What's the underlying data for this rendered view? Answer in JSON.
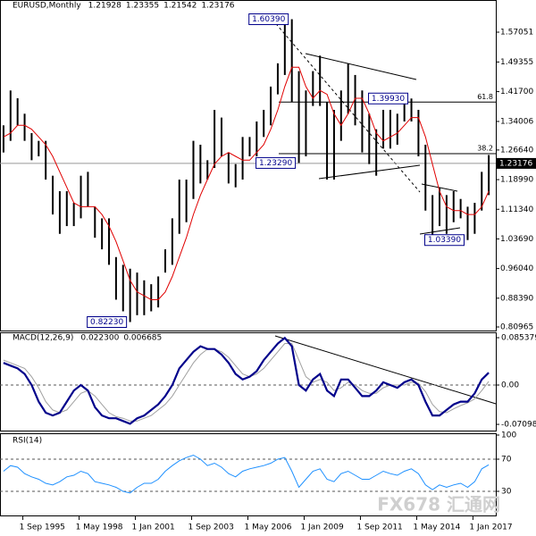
{
  "watermark": "FX678 汇通网",
  "chart_data": [
    {
      "type": "ohlc",
      "title": "EURUSD,Monthly",
      "header_values": [
        1.21928,
        1.23355,
        1.21542,
        1.23176
      ],
      "xlim": [
        -0.5,
        70
      ],
      "xticks": [
        {
          "value": 2.75,
          "label": "1 Sep 1995"
        },
        {
          "value": 10.75,
          "label": "1 May 1998"
        },
        {
          "value": 18.75,
          "label": "1 Jan 2001"
        },
        {
          "value": 26.75,
          "label": "1 Sep 2003"
        },
        {
          "value": 34.75,
          "label": "1 May 2006"
        },
        {
          "value": 42.75,
          "label": "1 Jan 2009"
        },
        {
          "value": 50.75,
          "label": "1 Sep 2011"
        },
        {
          "value": 58.75,
          "label": "1 May 2014"
        },
        {
          "value": 66.75,
          "label": "1 Jan 2017"
        }
      ],
      "ylim": [
        0.8004,
        1.642
      ],
      "yticks": [
        1.57051,
        1.49355,
        {
          "value": 1.417,
          "label": "1.41700"
        },
        1.34006,
        {
          "value": 1.2664,
          "label": "1.26640"
        },
        {
          "value": 1.1899,
          "label": "1.18990"
        },
        {
          "value": 1.1134,
          "label": "1.11340"
        },
        {
          "value": 1.0369,
          "label": "1.03690"
        },
        {
          "value": 0.9604,
          "label": "0.96040"
        },
        {
          "value": 0.8839,
          "label": "0.88390"
        },
        0.80965
      ],
      "price": {
        "color": "#000000",
        "high": [
          1.33,
          1.42,
          1.4,
          1.36,
          1.31,
          1.29,
          1.29,
          1.2,
          1.16,
          1.16,
          1.13,
          1.2,
          1.21,
          1.12,
          1.09,
          1.09,
          0.99,
          0.97,
          0.96,
          0.95,
          0.93,
          0.92,
          0.94,
          1.01,
          1.09,
          1.19,
          1.19,
          1.29,
          1.28,
          1.24,
          1.37,
          1.35,
          1.26,
          1.23,
          1.3,
          1.3,
          1.34,
          1.37,
          1.43,
          1.49,
          1.6,
          1.6039,
          1.47,
          1.42,
          1.47,
          1.51,
          1.39,
          1.37,
          1.42,
          1.49,
          1.46,
          1.42,
          1.36,
          1.32,
          1.37,
          1.37,
          1.36,
          1.39,
          1.3993,
          1.37,
          1.28,
          1.15,
          1.17,
          1.15,
          1.16,
          1.14,
          1.12,
          1.13,
          1.21,
          1.2535
        ],
        "low": [
          1.26,
          1.29,
          1.33,
          1.29,
          1.24,
          1.25,
          1.19,
          1.1,
          1.05,
          1.07,
          1.07,
          1.09,
          1.12,
          1.04,
          1.01,
          0.97,
          0.88,
          0.85,
          0.8223,
          0.84,
          0.84,
          0.85,
          0.86,
          0.95,
          0.97,
          1.05,
          1.08,
          1.14,
          1.18,
          1.19,
          1.22,
          1.25,
          1.18,
          1.17,
          1.19,
          1.25,
          1.25,
          1.3,
          1.33,
          1.41,
          1.46,
          1.39,
          1.2329,
          1.25,
          1.38,
          1.38,
          1.19,
          1.19,
          1.29,
          1.36,
          1.33,
          1.26,
          1.23,
          1.2,
          1.27,
          1.27,
          1.28,
          1.34,
          1.34,
          1.25,
          1.11,
          1.0458,
          1.07,
          1.05,
          1.08,
          1.09,
          1.0339,
          1.05,
          1.11,
          1.15
        ]
      },
      "ma": {
        "color": "#e00000",
        "values": [
          1.3,
          1.31,
          1.33,
          1.33,
          1.32,
          1.3,
          1.28,
          1.25,
          1.21,
          1.17,
          1.13,
          1.12,
          1.12,
          1.12,
          1.1,
          1.07,
          1.03,
          0.98,
          0.93,
          0.9,
          0.89,
          0.88,
          0.88,
          0.9,
          0.94,
          0.99,
          1.04,
          1.1,
          1.15,
          1.19,
          1.23,
          1.25,
          1.26,
          1.25,
          1.24,
          1.24,
          1.26,
          1.28,
          1.32,
          1.37,
          1.43,
          1.48,
          1.48,
          1.43,
          1.4,
          1.42,
          1.41,
          1.36,
          1.33,
          1.36,
          1.4,
          1.4,
          1.36,
          1.31,
          1.29,
          1.3,
          1.31,
          1.33,
          1.35,
          1.35,
          1.3,
          1.23,
          1.16,
          1.12,
          1.11,
          1.11,
          1.1,
          1.1,
          1.12,
          1.16
        ]
      },
      "fib_levels": [
        {
          "label": "61.8",
          "value": 1.39
        },
        {
          "label": "38.2",
          "value": 1.257
        }
      ],
      "annotations": [
        {
          "label": "1.60390",
          "value": 1.6039
        },
        {
          "label": "1.39930",
          "value": 1.3993
        },
        {
          "label": "1.23290",
          "value": 1.2329
        },
        {
          "label": "1.03390",
          "value": 1.0339
        },
        {
          "label": "0.82230",
          "value": 0.8223
        }
      ]
    },
    {
      "type": "line",
      "title": "MACD(12,26,9)",
      "header_values": [
        {
          "value": 0.0223,
          "label": "0.022300"
        },
        0.006685
      ],
      "ylim": [
        -0.0822,
        0.0951
      ],
      "yticks": [
        0.085379,
        {
          "value": 0,
          "label": "0.00"
        },
        -0.070989
      ],
      "series": [
        {
          "color": "#00008b",
          "width": 2.2,
          "values": [
            0.04,
            0.035,
            0.03,
            0.02,
            0.0,
            -0.03,
            -0.05,
            -0.055,
            -0.05,
            -0.03,
            -0.01,
            0.0,
            -0.01,
            -0.04,
            -0.055,
            -0.06,
            -0.06,
            -0.065,
            -0.07,
            -0.06,
            -0.055,
            -0.045,
            -0.035,
            -0.02,
            0.0,
            0.03,
            0.045,
            0.06,
            0.07,
            0.065,
            0.065,
            0.055,
            0.04,
            0.02,
            0.01,
            0.015,
            0.025,
            0.045,
            0.06,
            0.075,
            0.085,
            0.07,
            0.0,
            -0.01,
            0.01,
            0.02,
            -0.01,
            -0.02,
            0.01,
            0.01,
            -0.005,
            -0.02,
            -0.02,
            -0.01,
            0.005,
            0.0,
            -0.005,
            0.005,
            0.01,
            0.0,
            -0.03,
            -0.055,
            -0.055,
            -0.045,
            -0.035,
            -0.03,
            -0.03,
            -0.015,
            0.01,
            0.0223
          ]
        },
        {
          "color": "#a0a0a0",
          "width": 1,
          "values": [
            0.045,
            0.04,
            0.035,
            0.03,
            0.015,
            -0.005,
            -0.03,
            -0.045,
            -0.05,
            -0.045,
            -0.03,
            -0.015,
            -0.01,
            -0.02,
            -0.035,
            -0.05,
            -0.057,
            -0.06,
            -0.065,
            -0.065,
            -0.06,
            -0.055,
            -0.045,
            -0.035,
            -0.02,
            0.0,
            0.02,
            0.04,
            0.055,
            0.065,
            0.065,
            0.06,
            0.05,
            0.035,
            0.02,
            0.015,
            0.02,
            0.03,
            0.045,
            0.06,
            0.075,
            0.075,
            0.045,
            0.015,
            0.005,
            0.01,
            0.005,
            -0.01,
            -0.005,
            0.005,
            0.0,
            -0.01,
            -0.015,
            -0.015,
            -0.005,
            0.0,
            0.0,
            0.0,
            0.005,
            0.003,
            -0.012,
            -0.035,
            -0.048,
            -0.05,
            -0.043,
            -0.037,
            -0.032,
            -0.025,
            -0.01,
            0.006685
          ]
        }
      ]
    },
    {
      "type": "line",
      "title": "RSI(14)",
      "ylim": [
        0,
        100
      ],
      "yticks": [
        100,
        70,
        30
      ],
      "series": [
        {
          "color": "#1e90ff",
          "width": 1,
          "values": [
            55,
            62,
            60,
            52,
            48,
            45,
            40,
            38,
            42,
            48,
            50,
            55,
            52,
            42,
            40,
            38,
            35,
            30,
            28,
            35,
            40,
            40,
            45,
            55,
            62,
            68,
            72,
            75,
            70,
            62,
            65,
            60,
            52,
            48,
            55,
            58,
            60,
            62,
            65,
            70,
            72,
            55,
            35,
            45,
            55,
            58,
            45,
            42,
            52,
            55,
            50,
            45,
            45,
            50,
            55,
            52,
            50,
            55,
            58,
            52,
            38,
            32,
            38,
            35,
            38,
            40,
            35,
            42,
            58,
            62.9775
          ]
        }
      ]
    }
  ]
}
